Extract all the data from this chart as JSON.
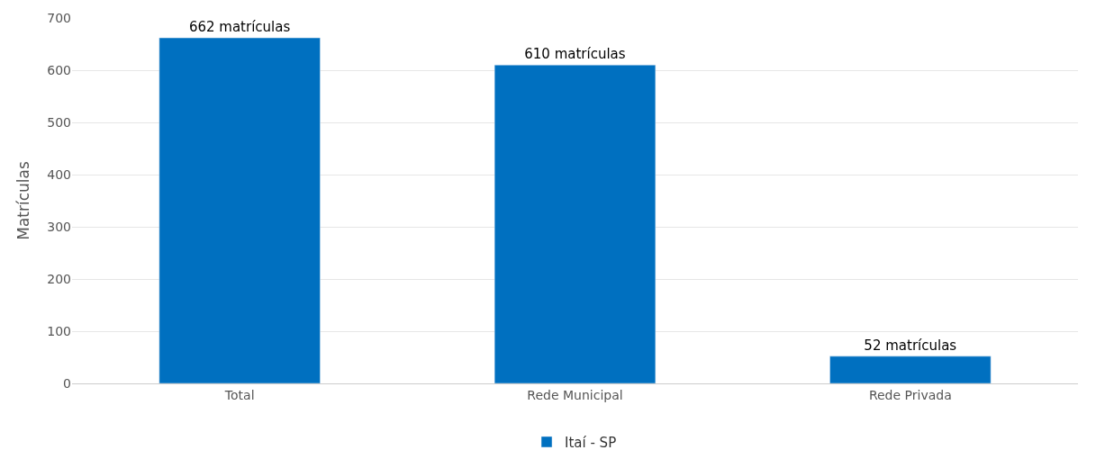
{
  "chart_data": {
    "type": "bar",
    "ylabel": "Matrículas",
    "categories": [
      "Total",
      "Rede Municipal",
      "Rede Privada"
    ],
    "series": [
      {
        "name": "Itaí - SP",
        "color": "#0070c0",
        "values": [
          662,
          610,
          52
        ],
        "value_labels": [
          "662 matrículas",
          "610 matrículas",
          "52 matrículas"
        ]
      }
    ],
    "ylim": [
      0,
      700
    ],
    "yticks": [
      0,
      100,
      200,
      300,
      400,
      500,
      600,
      700
    ],
    "grid": "y",
    "legend": "bottom"
  }
}
